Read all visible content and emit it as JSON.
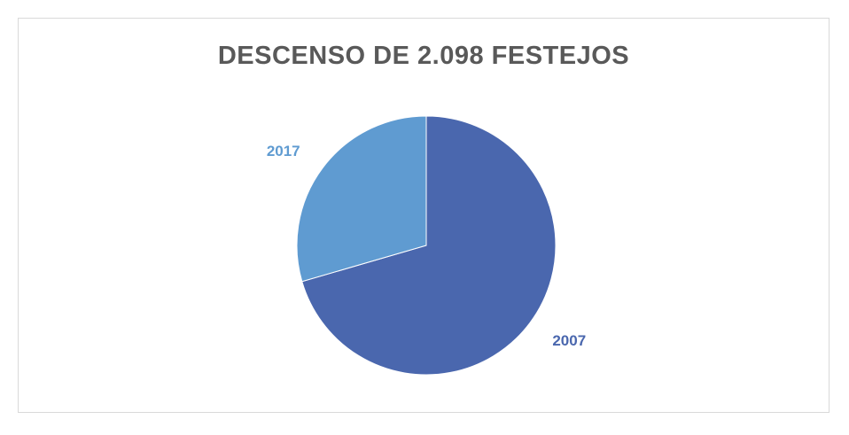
{
  "chart_data": {
    "type": "pie",
    "title": "DESCENSO DE 2.098 FESTEJOS",
    "categories": [
      "2007",
      "2017"
    ],
    "values": [
      70.5,
      29.5
    ],
    "value_unit": "percent_of_total",
    "colors": [
      "#4a67ae",
      "#5f9bd1"
    ],
    "legend": "none",
    "data_labels": [
      "2007",
      "2017"
    ]
  }
}
